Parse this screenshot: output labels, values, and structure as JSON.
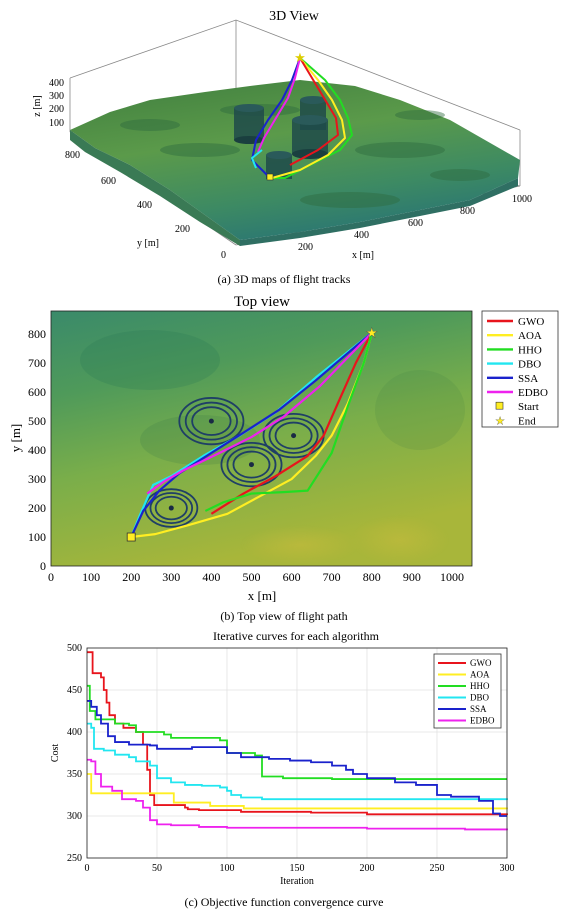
{
  "panel_a": {
    "title": "3D View",
    "caption": "(a) 3D maps of flight tracks",
    "z_axis": {
      "label": "z [m]",
      "ticks": [
        "400",
        "300",
        "200",
        "100"
      ]
    },
    "y_axis": {
      "label": "y [m]",
      "ticks": [
        "800",
        "600",
        "400",
        "200",
        "0"
      ]
    },
    "x_axis": {
      "label": "x [m]",
      "ticks": [
        "200",
        "400",
        "600",
        "800",
        "1000"
      ]
    }
  },
  "panel_b": {
    "title": "Top view",
    "caption": "(b) Top view of flight path",
    "xlabel": "x [m]",
    "ylabel": "y [m]",
    "x_ticks": [
      "0",
      "100",
      "200",
      "300",
      "400",
      "500",
      "600",
      "700",
      "800",
      "900",
      "1000"
    ],
    "y_ticks": [
      "0",
      "100",
      "200",
      "300",
      "400",
      "500",
      "600",
      "700",
      "800"
    ],
    "legend": [
      {
        "name": "GWO",
        "color": "#e8141c",
        "kind": "line"
      },
      {
        "name": "AOA",
        "color": "#ffee22",
        "kind": "line"
      },
      {
        "name": "HHO",
        "color": "#22dd22",
        "kind": "line"
      },
      {
        "name": "DBO",
        "color": "#22e6f0",
        "kind": "line"
      },
      {
        "name": "SSA",
        "color": "#1a22cc",
        "kind": "line"
      },
      {
        "name": "EDBO",
        "color": "#ee22ee",
        "kind": "line"
      },
      {
        "name": "Start",
        "color": "#ffee22",
        "kind": "square"
      },
      {
        "name": "End",
        "color": "#ffee22",
        "kind": "star"
      }
    ]
  },
  "panel_c": {
    "title": "Iterative curves for each algorithm",
    "caption": "(c) Objective function convergence curve",
    "xlabel": "Iteration",
    "ylabel": "Cost",
    "x_ticks": [
      "0",
      "50",
      "100",
      "150",
      "200",
      "250",
      "300"
    ],
    "y_ticks": [
      "500",
      "450",
      "400",
      "350",
      "300",
      "250"
    ]
  },
  "chart_data": [
    {
      "type": "line",
      "title": "Top view",
      "xlabel": "x [m]",
      "ylabel": "y [m]",
      "xlim": [
        0,
        1050
      ],
      "ylim": [
        0,
        880
      ],
      "threats": [
        {
          "x": 300,
          "y": 200,
          "radius": 65
        },
        {
          "x": 400,
          "y": 500,
          "radius": 80
        },
        {
          "x": 500,
          "y": 350,
          "radius": 75
        },
        {
          "x": 605,
          "y": 450,
          "radius": 75
        }
      ],
      "start": {
        "x": 200,
        "y": 100
      },
      "end": {
        "x": 800,
        "y": 805
      },
      "series": [
        {
          "name": "GWO",
          "color": "#e8141c",
          "points": [
            [
              400,
              180
            ],
            [
              480,
              250
            ],
            [
              560,
              310
            ],
            [
              640,
              380
            ],
            [
              680,
              450
            ],
            [
              715,
              560
            ],
            [
              760,
              700
            ],
            [
              800,
              805
            ]
          ]
        },
        {
          "name": "AOA",
          "color": "#ffee22",
          "points": [
            [
              200,
              100
            ],
            [
              260,
              110
            ],
            [
              340,
              140
            ],
            [
              440,
              180
            ],
            [
              520,
              240
            ],
            [
              600,
              300
            ],
            [
              660,
              380
            ],
            [
              700,
              450
            ],
            [
              740,
              560
            ],
            [
              780,
              700
            ],
            [
              800,
              805
            ]
          ]
        },
        {
          "name": "HHO",
          "color": "#22dd22",
          "points": [
            [
              385,
              190
            ],
            [
              430,
              220
            ],
            [
              500,
              250
            ],
            [
              580,
              255
            ],
            [
              640,
              260
            ],
            [
              700,
              390
            ],
            [
              740,
              550
            ],
            [
              780,
              700
            ],
            [
              800,
              805
            ]
          ]
        },
        {
          "name": "DBO",
          "color": "#22e6f0",
          "points": [
            [
              200,
              100
            ],
            [
              220,
              170
            ],
            [
              255,
              280
            ],
            [
              300,
              310
            ],
            [
              380,
              380
            ],
            [
              470,
              450
            ],
            [
              560,
              530
            ],
            [
              660,
              650
            ],
            [
              800,
              805
            ]
          ]
        },
        {
          "name": "SSA",
          "color": "#1a22cc",
          "points": [
            [
              200,
              100
            ],
            [
              230,
              190
            ],
            [
              270,
              260
            ],
            [
              320,
              320
            ],
            [
              400,
              390
            ],
            [
              480,
              460
            ],
            [
              570,
              540
            ],
            [
              660,
              640
            ],
            [
              800,
              805
            ]
          ]
        },
        {
          "name": "EDBO",
          "color": "#ee22ee",
          "points": [
            [
              240,
              250
            ],
            [
              280,
              290
            ],
            [
              330,
              330
            ],
            [
              420,
              390
            ],
            [
              500,
              445
            ],
            [
              580,
              515
            ],
            [
              670,
              620
            ],
            [
              800,
              805
            ]
          ]
        }
      ]
    },
    {
      "type": "line",
      "title": "Iterative curves for each algorithm",
      "xlabel": "Iteration",
      "ylabel": "Cost",
      "xlim": [
        0,
        300
      ],
      "ylim": [
        250,
        500
      ],
      "series": [
        {
          "name": "GWO",
          "color": "#e8141c",
          "points": [
            [
              0,
              495
            ],
            [
              3,
              495
            ],
            [
              4,
              470
            ],
            [
              10,
              465
            ],
            [
              12,
              450
            ],
            [
              14,
              435
            ],
            [
              16,
              420
            ],
            [
              20,
              410
            ],
            [
              26,
              405
            ],
            [
              35,
              400
            ],
            [
              40,
              385
            ],
            [
              43,
              355
            ],
            [
              45,
              325
            ],
            [
              48,
              313
            ],
            [
              70,
              310
            ],
            [
              72,
              308
            ],
            [
              80,
              307
            ],
            [
              110,
              305
            ],
            [
              160,
              304
            ],
            [
              200,
              302
            ],
            [
              300,
              301
            ]
          ]
        },
        {
          "name": "AOA",
          "color": "#ffee22",
          "points": [
            [
              0,
              350
            ],
            [
              3,
              327
            ],
            [
              60,
              327
            ],
            [
              62,
              316
            ],
            [
              85,
              316
            ],
            [
              88,
              312
            ],
            [
              110,
              312
            ],
            [
              112,
              309
            ],
            [
              300,
              308
            ]
          ]
        },
        {
          "name": "HHO",
          "color": "#22dd22",
          "points": [
            [
              0,
              455
            ],
            [
              2,
              425
            ],
            [
              6,
              415
            ],
            [
              20,
              410
            ],
            [
              30,
              408
            ],
            [
              35,
              400
            ],
            [
              55,
              397
            ],
            [
              60,
              393
            ],
            [
              95,
              390
            ],
            [
              100,
              375
            ],
            [
              120,
              372
            ],
            [
              125,
              347
            ],
            [
              140,
              345
            ],
            [
              160,
              345
            ],
            [
              175,
              344
            ],
            [
              300,
              344
            ]
          ]
        },
        {
          "name": "DBO",
          "color": "#22e6f0",
          "points": [
            [
              0,
              410
            ],
            [
              3,
              405
            ],
            [
              5,
              380
            ],
            [
              12,
              378
            ],
            [
              20,
              373
            ],
            [
              30,
              370
            ],
            [
              35,
              365
            ],
            [
              45,
              360
            ],
            [
              50,
              345
            ],
            [
              60,
              340
            ],
            [
              70,
              337
            ],
            [
              82,
              336
            ],
            [
              95,
              334
            ],
            [
              100,
              330
            ],
            [
              103,
              325
            ],
            [
              110,
              322
            ],
            [
              125,
              320
            ],
            [
              250,
              320
            ],
            [
              300,
              319
            ]
          ]
        },
        {
          "name": "SSA",
          "color": "#1a22cc",
          "points": [
            [
              0,
              437
            ],
            [
              3,
              430
            ],
            [
              7,
              420
            ],
            [
              10,
              410
            ],
            [
              15,
              395
            ],
            [
              20,
              388
            ],
            [
              30,
              385
            ],
            [
              45,
              384
            ],
            [
              50,
              380
            ],
            [
              60,
              380
            ],
            [
              75,
              382
            ],
            [
              88,
              382
            ],
            [
              100,
              375
            ],
            [
              110,
              370
            ],
            [
              130,
              368
            ],
            [
              145,
              366
            ],
            [
              160,
              364
            ],
            [
              175,
              360
            ],
            [
              185,
              355
            ],
            [
              190,
              350
            ],
            [
              200,
              345
            ],
            [
              220,
              340
            ],
            [
              235,
              337
            ],
            [
              250,
              325
            ],
            [
              260,
              323
            ],
            [
              280,
              318
            ],
            [
              290,
              303
            ],
            [
              295,
              300
            ],
            [
              300,
              300
            ]
          ]
        },
        {
          "name": "EDBO",
          "color": "#ee22ee",
          "points": [
            [
              0,
              367
            ],
            [
              3,
              365
            ],
            [
              6,
              350
            ],
            [
              10,
              335
            ],
            [
              18,
              330
            ],
            [
              25,
              320
            ],
            [
              35,
              318
            ],
            [
              40,
              310
            ],
            [
              45,
              295
            ],
            [
              50,
              290
            ],
            [
              60,
              289
            ],
            [
              80,
              287
            ],
            [
              100,
              286
            ],
            [
              200,
              285
            ],
            [
              270,
              284
            ],
            [
              300,
              283
            ]
          ]
        }
      ]
    }
  ]
}
